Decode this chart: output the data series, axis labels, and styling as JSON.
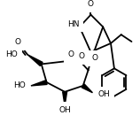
{
  "bg_color": "#ffffff",
  "line_color": "#000000",
  "line_width": 1.3,
  "font_size": 6.5,
  "figsize": [
    1.58,
    1.39
  ],
  "dpi": 100,
  "xlim": [
    0,
    158
  ],
  "ylim": [
    0,
    139
  ]
}
